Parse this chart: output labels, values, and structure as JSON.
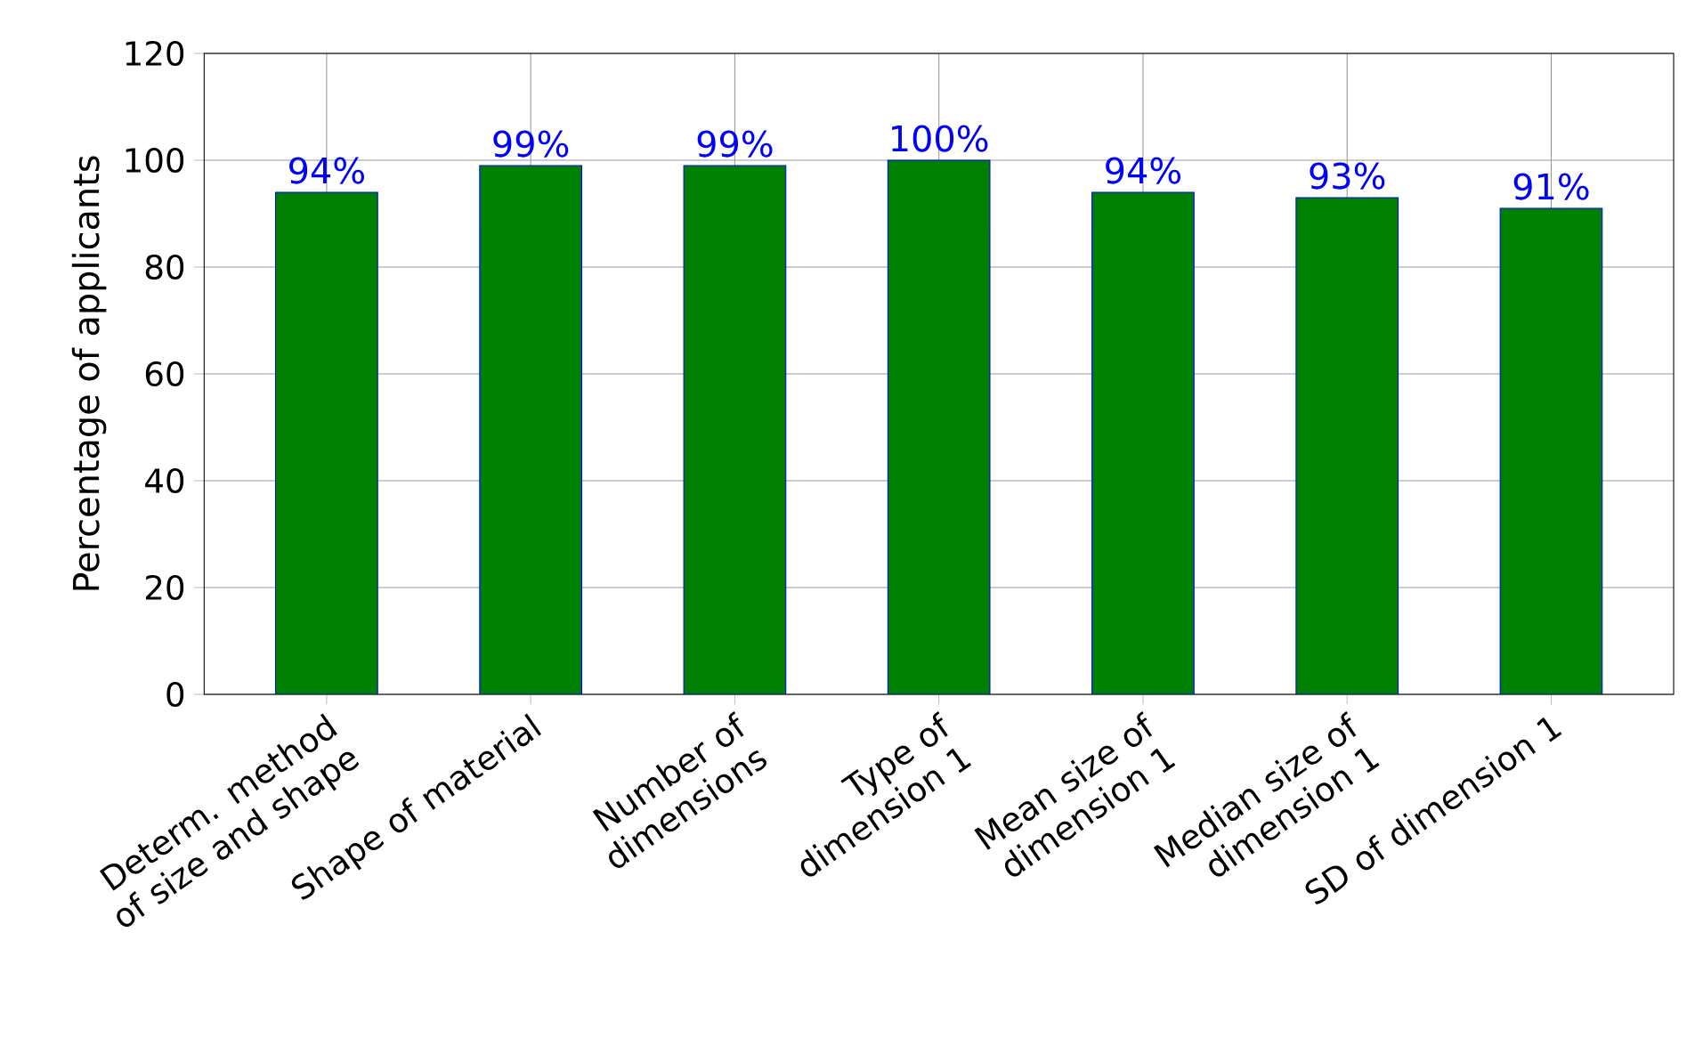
{
  "chart_data": {
    "type": "bar",
    "ylabel": "Percentage of applicants",
    "categories": [
      "Determ. method of size and shape",
      "Shape of material",
      "Number of dimensions",
      "Type of dimension 1",
      "Mean size of dimension 1",
      "Median size of dimension 1",
      "SD of dimension 1"
    ],
    "values": [
      94,
      99,
      99,
      100,
      94,
      93,
      91
    ],
    "value_labels": [
      "94%",
      "99%",
      "99%",
      "100%",
      "94%",
      "93%",
      "91%"
    ],
    "color": "#008000",
    "ylim": [
      0,
      120
    ],
    "yticks": [
      0,
      20,
      40,
      60,
      80,
      100,
      120
    ],
    "grid": true
  }
}
